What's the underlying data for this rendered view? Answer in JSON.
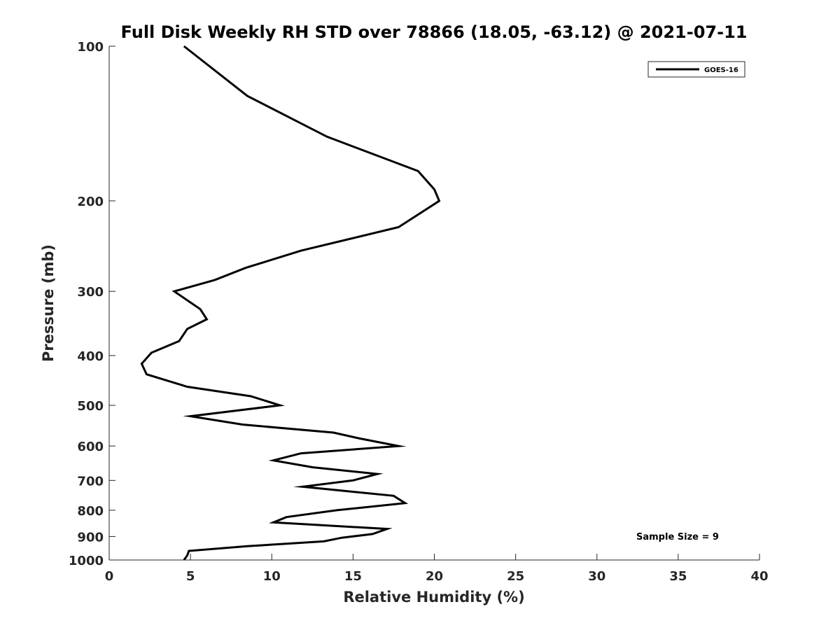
{
  "chart_data": {
    "type": "line",
    "title": "Full Disk Weekly RH STD over 78866 (18.05, -63.12) @ 2021-07-11",
    "xlabel": "Relative Humidity (%)",
    "ylabel": "Pressure (mb)",
    "xlim": [
      0,
      40
    ],
    "ylim": [
      1000,
      100
    ],
    "yscale": "log",
    "yreversed": true,
    "xticks": [
      0,
      5,
      10,
      15,
      20,
      25,
      30,
      35,
      40
    ],
    "yticks": [
      100,
      200,
      300,
      400,
      500,
      600,
      700,
      800,
      900,
      1000
    ],
    "grid": false,
    "legend": {
      "position": "top-right"
    },
    "annotation": "Sample Size = 9",
    "line_color": "#000000",
    "series": [
      {
        "name": "GOES-16",
        "x": [
          4.6,
          8.5,
          13.4,
          19.0,
          20.0,
          20.3,
          17.8,
          11.8,
          8.4,
          6.5,
          4.0,
          5.6,
          6.0,
          4.8,
          4.3,
          2.6,
          2.0,
          2.3,
          4.8,
          8.7,
          10.5,
          5.0,
          8.2,
          13.8,
          15.4,
          17.8,
          11.8,
          10.1,
          12.5,
          16.5,
          15.0,
          11.9,
          17.5,
          18.2,
          14.0,
          10.9,
          10.1,
          17.1,
          16.2,
          14.3,
          13.2,
          8.5,
          4.9,
          4.8,
          4.6
        ],
        "y": [
          100,
          125,
          150,
          175,
          190,
          200,
          225,
          250,
          270,
          285,
          300,
          325,
          340,
          355,
          375,
          395,
          415,
          435,
          460,
          480,
          500,
          525,
          545,
          565,
          580,
          600,
          620,
          640,
          660,
          680,
          700,
          720,
          750,
          775,
          800,
          825,
          845,
          870,
          890,
          905,
          920,
          940,
          960,
          980,
          1000
        ]
      }
    ]
  }
}
